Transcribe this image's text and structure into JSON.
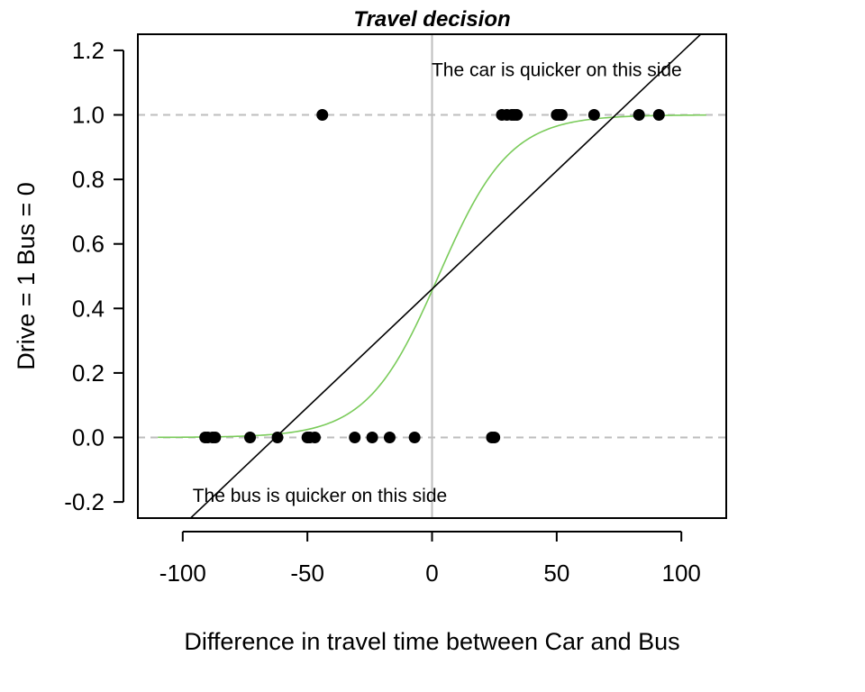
{
  "chart_data": {
    "type": "scatter",
    "title": "Travel decision",
    "xlabel": "Difference in travel time between Car and Bus",
    "ylabel": "Drive = 1 Bus = 0",
    "xlim": [
      -118,
      118
    ],
    "ylim": [
      -0.25,
      1.25
    ],
    "x_ticks": [
      -100,
      -50,
      0,
      50,
      100
    ],
    "y_ticks": [
      -0.2,
      0.0,
      0.2,
      0.4,
      0.6,
      0.8,
      1.0,
      1.2
    ],
    "x_tick_labels": [
      "-100",
      "-50",
      "0",
      "50",
      "100"
    ],
    "y_tick_labels": [
      "-0.2",
      "0.0",
      "0.2",
      "0.4",
      "0.6",
      "0.8",
      "1.0",
      "1.2"
    ],
    "grid": false,
    "reference_lines": {
      "horizontal": [
        0,
        1
      ],
      "vertical": [
        0
      ],
      "horizontal_color": "#bebebe",
      "vertical_color": "#bebebe"
    },
    "points": {
      "color": "#000000",
      "x": [
        -44,
        28,
        30,
        32,
        33,
        34,
        50,
        51,
        52,
        65,
        83,
        91,
        -91,
        -90,
        -88,
        -87,
        -73,
        -62,
        -50,
        -49,
        -47,
        -31,
        -24,
        -17,
        -7,
        24,
        25
      ],
      "y": [
        1,
        1,
        1,
        1,
        1,
        1,
        1,
        1,
        1,
        1,
        1,
        1,
        0,
        0,
        0,
        0,
        0,
        0,
        0,
        0,
        0,
        0,
        0,
        0,
        0,
        0,
        0
      ]
    },
    "linear_fit": {
      "intercept": 0.46,
      "slope": 0.00733,
      "color": "#000000"
    },
    "logistic_fit": {
      "intercept": -0.18,
      "slope": 0.07,
      "x_range": [
        -110,
        110
      ],
      "color": "#7acb5a"
    },
    "annotations": [
      {
        "text": "The car is quicker on this side",
        "x": 50,
        "y": 1.14
      },
      {
        "text": "The bus is quicker on this side",
        "x": -45,
        "y": -0.18
      }
    ]
  }
}
